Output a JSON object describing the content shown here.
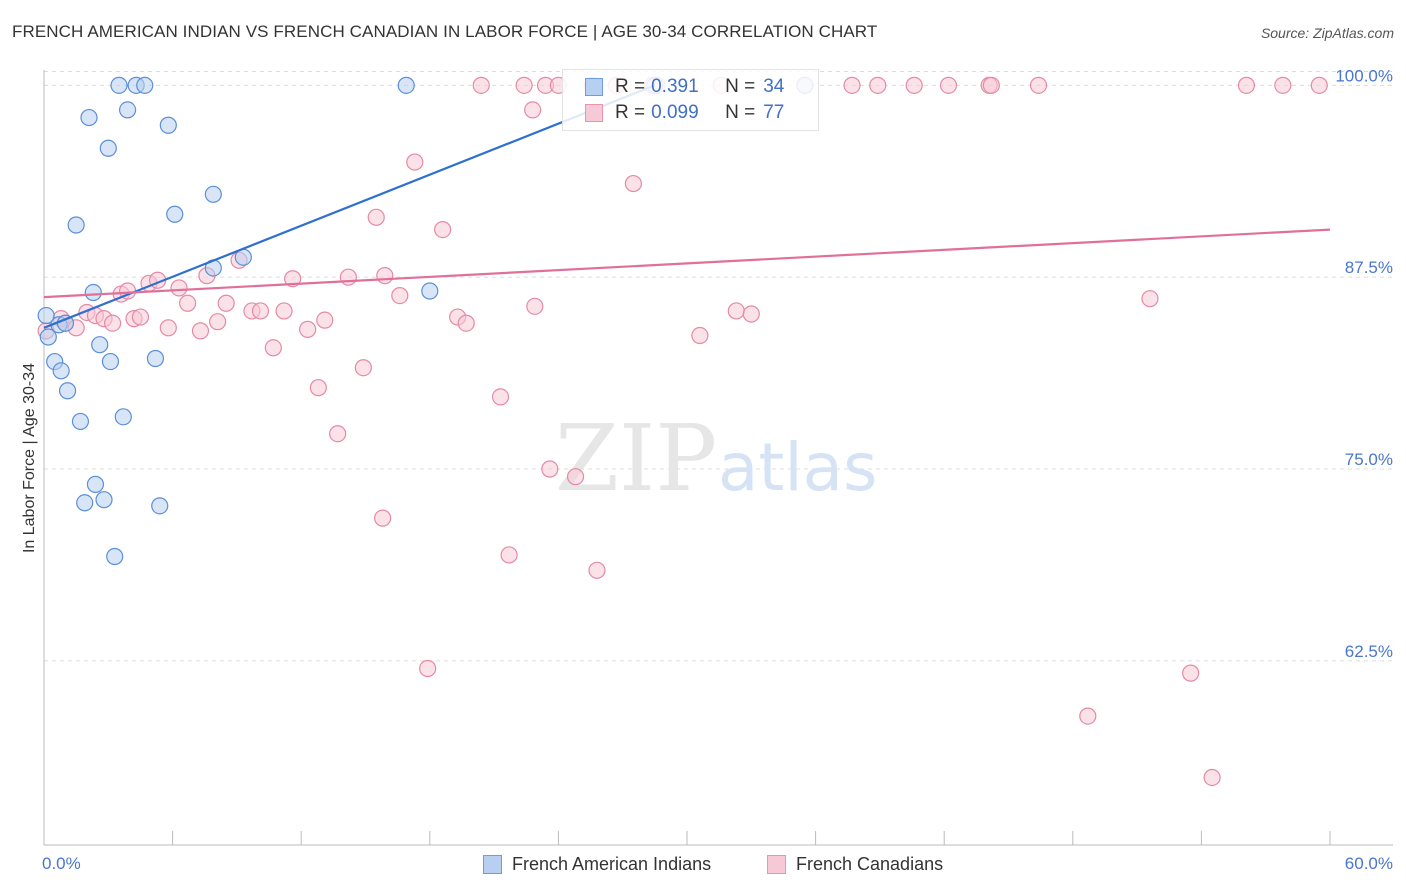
{
  "header": {
    "title": "FRENCH AMERICAN INDIAN VS FRENCH CANADIAN IN LABOR FORCE | AGE 30-34 CORRELATION CHART",
    "source": "Source: ZipAtlas.com"
  },
  "watermark": {
    "zip": "ZIP",
    "atlas": "atlas"
  },
  "legend": {
    "rows": [
      {
        "r_label": "R =",
        "r_value": "0.391",
        "n_label": "N =",
        "n_value": "34",
        "color": "#a8c4ee"
      },
      {
        "r_label": "R =",
        "r_value": "0.099",
        "n_label": "N =",
        "n_value": "77",
        "color": "#f4b8ca"
      }
    ]
  },
  "bottom_legend": {
    "items": [
      {
        "label": "French American Indians",
        "color": "#a8c4ee"
      },
      {
        "label": "French Canadians",
        "color": "#f4b8ca"
      }
    ]
  },
  "chart_data": {
    "type": "scatter",
    "title": "FRENCH AMERICAN INDIAN VS FRENCH CANADIAN IN LABOR FORCE | AGE 30-34 CORRELATION CHART",
    "xlabel": "",
    "ylabel": "In Labor Force | Age 30-34",
    "xlim": [
      0,
      60
    ],
    "ylim": [
      50.5,
      101
    ],
    "x_tick_labels": [
      "0.0%",
      "60.0%"
    ],
    "y_ticks": [
      62.5,
      75.0,
      87.5,
      100.0
    ],
    "y_tick_labels": [
      "62.5%",
      "75.0%",
      "87.5%",
      "100.0%"
    ],
    "grid": true,
    "series": [
      {
        "name": "French American Indians",
        "color": "#5b8fd6",
        "fill": "#b7cff0",
        "trend": {
          "x": [
            0,
            28.5
          ],
          "y": [
            84.2,
            100.0
          ],
          "color": "#2e6fd0"
        },
        "points": [
          [
            0.1,
            85.0
          ],
          [
            0.2,
            83.6
          ],
          [
            0.7,
            84.4
          ],
          [
            0.5,
            82.0
          ],
          [
            0.8,
            81.4
          ],
          [
            1.0,
            84.5
          ],
          [
            1.1,
            80.1
          ],
          [
            1.5,
            90.9
          ],
          [
            1.7,
            78.1
          ],
          [
            1.9,
            72.8
          ],
          [
            2.1,
            97.9
          ],
          [
            2.3,
            86.5
          ],
          [
            2.4,
            74.0
          ],
          [
            2.6,
            83.1
          ],
          [
            2.8,
            73.0
          ],
          [
            3.0,
            95.9
          ],
          [
            3.1,
            82.0
          ],
          [
            3.3,
            69.3
          ],
          [
            3.5,
            100.0
          ],
          [
            3.7,
            78.4
          ],
          [
            3.9,
            98.4
          ],
          [
            4.3,
            100.0
          ],
          [
            4.7,
            100.0
          ],
          [
            5.2,
            82.2
          ],
          [
            5.4,
            72.6
          ],
          [
            5.8,
            97.4
          ],
          [
            6.1,
            91.6
          ],
          [
            7.9,
            92.9
          ],
          [
            7.9,
            88.1
          ],
          [
            9.3,
            88.8
          ],
          [
            16.9,
            100.0
          ],
          [
            18.0,
            86.6
          ],
          [
            28.5,
            100.0
          ],
          [
            35.5,
            100.0
          ]
        ]
      },
      {
        "name": "French Canadians",
        "color": "#e58aa6",
        "fill": "#f7c9d6",
        "trend": {
          "x": [
            0,
            60
          ],
          "y": [
            86.2,
            90.6
          ],
          "color": "#e0709a"
        },
        "points": [
          [
            0.1,
            84.0
          ],
          [
            0.8,
            84.8
          ],
          [
            1.0,
            84.5
          ],
          [
            1.5,
            84.2
          ],
          [
            2.0,
            85.2
          ],
          [
            2.4,
            85.0
          ],
          [
            2.8,
            84.8
          ],
          [
            3.2,
            84.5
          ],
          [
            3.6,
            86.4
          ],
          [
            3.9,
            86.6
          ],
          [
            4.2,
            84.8
          ],
          [
            4.5,
            84.9
          ],
          [
            4.9,
            87.1
          ],
          [
            5.3,
            87.3
          ],
          [
            5.8,
            84.2
          ],
          [
            6.3,
            86.8
          ],
          [
            6.7,
            85.8
          ],
          [
            7.3,
            84.0
          ],
          [
            7.6,
            87.6
          ],
          [
            8.1,
            84.6
          ],
          [
            8.5,
            85.8
          ],
          [
            9.1,
            88.6
          ],
          [
            9.7,
            85.3
          ],
          [
            10.1,
            85.3
          ],
          [
            10.7,
            82.9
          ],
          [
            11.2,
            85.3
          ],
          [
            11.6,
            87.4
          ],
          [
            12.3,
            84.1
          ],
          [
            12.8,
            80.3
          ],
          [
            13.1,
            84.7
          ],
          [
            13.7,
            77.3
          ],
          [
            14.2,
            87.5
          ],
          [
            14.9,
            81.6
          ],
          [
            15.5,
            91.4
          ],
          [
            15.8,
            71.8
          ],
          [
            15.9,
            87.6
          ],
          [
            16.6,
            86.3
          ],
          [
            17.3,
            95.0
          ],
          [
            17.9,
            62.0
          ],
          [
            18.6,
            90.6
          ],
          [
            19.3,
            84.9
          ],
          [
            19.7,
            84.5
          ],
          [
            20.4,
            100.0
          ],
          [
            21.3,
            79.7
          ],
          [
            21.7,
            69.4
          ],
          [
            22.4,
            100.0
          ],
          [
            22.8,
            98.4
          ],
          [
            22.9,
            85.6
          ],
          [
            23.4,
            100.0
          ],
          [
            23.6,
            75.0
          ],
          [
            24.0,
            100.0
          ],
          [
            24.8,
            74.5
          ],
          [
            25.6,
            100.0
          ],
          [
            25.8,
            68.4
          ],
          [
            26.7,
            100.0
          ],
          [
            27.5,
            93.6
          ],
          [
            28.4,
            100.0
          ],
          [
            28.6,
            100.0
          ],
          [
            30.6,
            83.7
          ],
          [
            31.6,
            100.0
          ],
          [
            32.3,
            85.3
          ],
          [
            33.0,
            85.1
          ],
          [
            35.5,
            100.0
          ],
          [
            37.7,
            100.0
          ],
          [
            38.9,
            100.0
          ],
          [
            40.6,
            100.0
          ],
          [
            42.2,
            100.0
          ],
          [
            44.1,
            100.0
          ],
          [
            44.2,
            100.0
          ],
          [
            46.4,
            100.0
          ],
          [
            48.7,
            58.9
          ],
          [
            51.6,
            86.1
          ],
          [
            53.5,
            61.7
          ],
          [
            54.5,
            54.9
          ],
          [
            56.1,
            100.0
          ],
          [
            57.8,
            100.0
          ],
          [
            59.5,
            100.0
          ]
        ]
      }
    ]
  }
}
